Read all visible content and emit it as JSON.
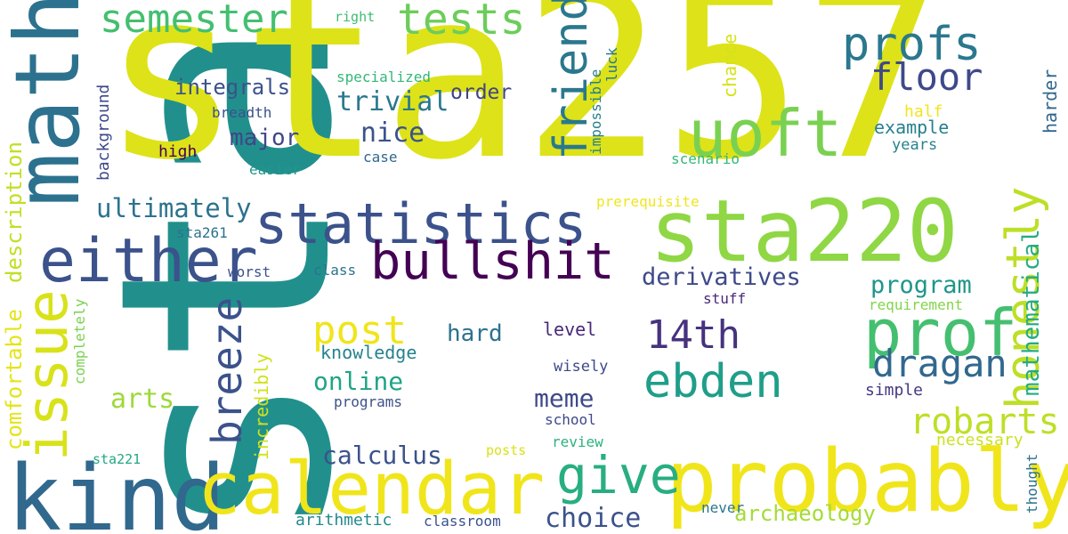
{
  "words": [
    {
      "text": "stats",
      "color": "#21908d"
    },
    {
      "text": "sta257",
      "color": "#dde318"
    },
    {
      "text": "math",
      "color": "#2c728e"
    },
    {
      "text": "kind",
      "color": "#31688e"
    },
    {
      "text": "calendar",
      "color": "#f0e51b"
    },
    {
      "text": "probably",
      "color": "#f0e51b"
    },
    {
      "text": "sta220",
      "color": "#8fd744"
    },
    {
      "text": "statistics",
      "color": "#3b528b"
    },
    {
      "text": "either",
      "color": "#3b528b"
    },
    {
      "text": "issue",
      "color": "#d8e219"
    },
    {
      "text": "bullshit",
      "color": "#440154"
    },
    {
      "text": "uoft",
      "color": "#7ad151"
    },
    {
      "text": "prof",
      "color": "#44bf70"
    },
    {
      "text": "honestly",
      "color": "#bddf26"
    },
    {
      "text": "semester",
      "color": "#44bf70"
    },
    {
      "text": "tests",
      "color": "#6ccd5a"
    },
    {
      "text": "friend",
      "color": "#2a788e"
    },
    {
      "text": "profs",
      "color": "#2a788e"
    },
    {
      "text": "floor",
      "color": "#3e4989"
    },
    {
      "text": "give",
      "color": "#28ae80"
    },
    {
      "text": "ebden",
      "color": "#1f9e89"
    },
    {
      "text": "dragan",
      "color": "#31688e"
    },
    {
      "text": "breeze",
      "color": "#3b528b"
    },
    {
      "text": "robarts",
      "color": "#bddf26"
    },
    {
      "text": "post",
      "color": "#f0e51b"
    },
    {
      "text": "14th",
      "color": "#46327e"
    },
    {
      "text": "online",
      "color": "#20a486"
    },
    {
      "text": "arts",
      "color": "#9ed93a"
    },
    {
      "text": "comfortable",
      "color": "#e4e419"
    },
    {
      "text": "description",
      "color": "#c2df23"
    },
    {
      "text": "integrals",
      "color": "#3b528b"
    },
    {
      "text": "trivial",
      "color": "#2a788e"
    },
    {
      "text": "nice",
      "color": "#3b528b"
    },
    {
      "text": "major",
      "color": "#404688"
    },
    {
      "text": "ultimately",
      "color": "#2c728e"
    },
    {
      "text": "order",
      "color": "#414487"
    },
    {
      "text": "derivatives",
      "color": "#3e4989"
    },
    {
      "text": "program",
      "color": "#1f968b"
    },
    {
      "text": "hard",
      "color": "#2c728e"
    },
    {
      "text": "meme",
      "color": "#3e4989"
    },
    {
      "text": "calculus",
      "color": "#3b528b"
    },
    {
      "text": "choice",
      "color": "#3b528b"
    },
    {
      "text": "archaeology",
      "color": "#a5db36"
    },
    {
      "text": "mathematical",
      "color": "#25ab82"
    },
    {
      "text": "harder",
      "color": "#31688e"
    },
    {
      "text": "knowledge",
      "color": "#26828e"
    },
    {
      "text": "level",
      "color": "#482878"
    },
    {
      "text": "incredibly",
      "color": "#d0e11c"
    },
    {
      "text": "completely",
      "color": "#7ad151"
    },
    {
      "text": "background",
      "color": "#3e4989"
    },
    {
      "text": "chance",
      "color": "#d5e21a"
    },
    {
      "text": "specialized",
      "color": "#35b779"
    },
    {
      "text": "impossible",
      "color": "#277f8e"
    },
    {
      "text": "luck",
      "color": "#2a788e"
    },
    {
      "text": "right",
      "color": "#3dbc74"
    },
    {
      "text": "half",
      "color": "#f1e51d"
    },
    {
      "text": "example",
      "color": "#27808e"
    },
    {
      "text": "years",
      "color": "#26828e"
    },
    {
      "text": "breadth",
      "color": "#3b528b"
    },
    {
      "text": "high",
      "color": "#440154"
    },
    {
      "text": "easier",
      "color": "#1f968b"
    },
    {
      "text": "case",
      "color": "#31688e"
    },
    {
      "text": "scenario",
      "color": "#35b779"
    },
    {
      "text": "prerequisite",
      "color": "#f1e51d"
    },
    {
      "text": "sta261",
      "color": "#2c728e"
    },
    {
      "text": "worst",
      "color": "#3b528b"
    },
    {
      "text": "class",
      "color": "#2c728e"
    },
    {
      "text": "stuff",
      "color": "#482878"
    },
    {
      "text": "requirement",
      "color": "#84d44b"
    },
    {
      "text": "wisely",
      "color": "#3e4989"
    },
    {
      "text": "simple",
      "color": "#453882"
    },
    {
      "text": "programs",
      "color": "#3b528b"
    },
    {
      "text": "school",
      "color": "#3e4989"
    },
    {
      "text": "review",
      "color": "#2db27d"
    },
    {
      "text": "necessary",
      "color": "#cae11f"
    },
    {
      "text": "posts",
      "color": "#d8e219"
    },
    {
      "text": "sta221",
      "color": "#22a884"
    },
    {
      "text": "thought",
      "color": "#2c728e"
    },
    {
      "text": "arithmetic",
      "color": "#23898e"
    },
    {
      "text": "classroom",
      "color": "#3b528b"
    },
    {
      "text": "never",
      "color": "#2a788e"
    }
  ]
}
